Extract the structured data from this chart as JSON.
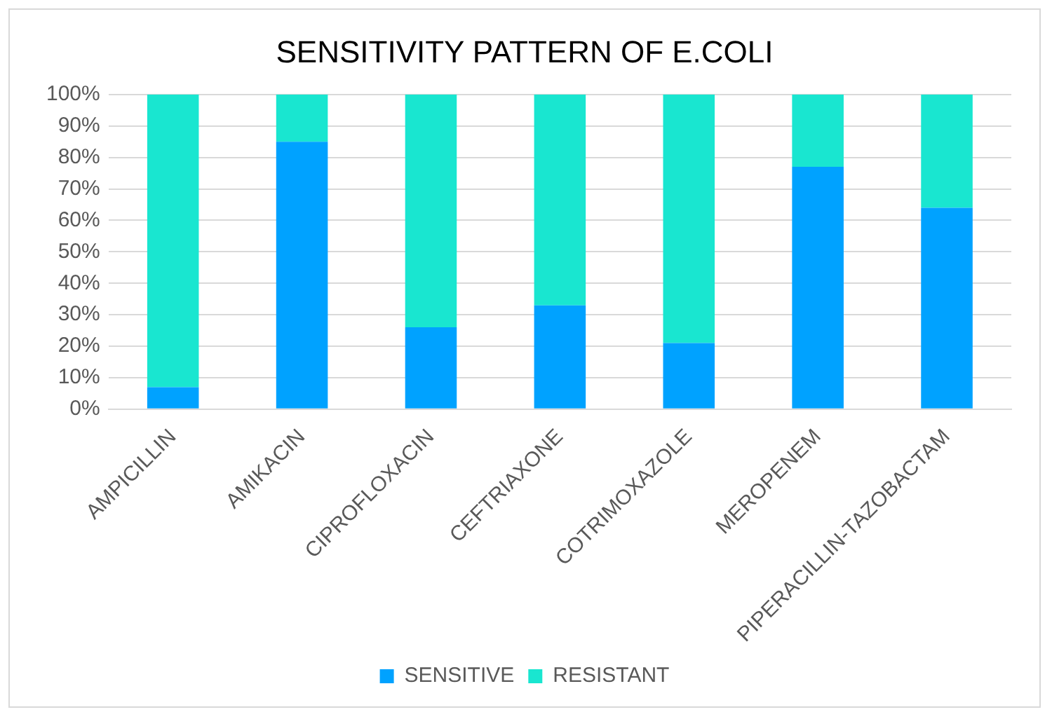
{
  "chart_data": {
    "type": "bar",
    "title": "SENSITIVITY PATTERN OF E.COLI",
    "stacked": true,
    "categories": [
      "AMPICILLIN",
      "AMIKACIN",
      "CIPROFLOXACIN",
      "CEFTRIAXONE",
      "COTRIMOXAZOLE",
      "MEROPENEM",
      "PIPERACILLIN-TAZOBACTAM"
    ],
    "series": [
      {
        "name": "SENSITIVE",
        "color": "#00a2ff",
        "values": [
          7,
          85,
          26,
          33,
          21,
          77,
          64
        ]
      },
      {
        "name": "RESISTANT",
        "color": "#19e6d0",
        "values": [
          93,
          15,
          74,
          67,
          79,
          23,
          36
        ]
      }
    ],
    "ylim": [
      0,
      100
    ],
    "yticks": [
      {
        "value": 0,
        "label": "0%"
      },
      {
        "value": 10,
        "label": "10%"
      },
      {
        "value": 20,
        "label": "20%"
      },
      {
        "value": 30,
        "label": "30%"
      },
      {
        "value": 40,
        "label": "40%"
      },
      {
        "value": 50,
        "label": "50%"
      },
      {
        "value": 60,
        "label": "60%"
      },
      {
        "value": 70,
        "label": "70%"
      },
      {
        "value": 80,
        "label": "80%"
      },
      {
        "value": 90,
        "label": "90%"
      },
      {
        "value": 100,
        "label": "100%"
      }
    ],
    "grid": "y",
    "legend": "bottom"
  }
}
